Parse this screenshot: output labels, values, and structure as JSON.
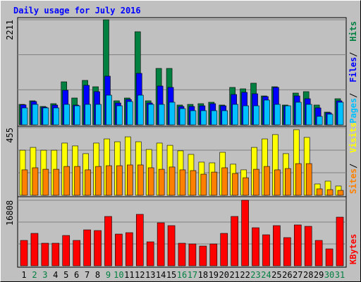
{
  "title": "Daily usage for July 2016",
  "categories": [
    "1",
    "2",
    "3",
    "4",
    "5",
    "6",
    "7",
    "8",
    "9",
    "10",
    "11",
    "12",
    "13",
    "14",
    "15",
    "16",
    "17",
    "18",
    "19",
    "20",
    "21",
    "22",
    "23",
    "24",
    "25",
    "26",
    "27",
    "28",
    "29",
    "30",
    "31"
  ],
  "category_colors": [
    "#000000",
    "#008040",
    "#008040",
    "#000000",
    "#000000",
    "#000000",
    "#000000",
    "#000000",
    "#008040",
    "#008040",
    "#000000",
    "#000000",
    "#000000",
    "#000000",
    "#000000",
    "#008040",
    "#008040",
    "#000000",
    "#000000",
    "#000000",
    "#000000",
    "#000000",
    "#008040",
    "#008040",
    "#000000",
    "#000000",
    "#000000",
    "#000000",
    "#000000",
    "#008040",
    "#008040"
  ],
  "chart_data": [
    {
      "type": "bar",
      "ylim": [
        0,
        2211
      ],
      "yticks": [
        2211
      ],
      "grid": true,
      "series": [
        {
          "name": "Hits",
          "color": "#008040",
          "values": [
            430,
            505,
            386,
            445,
            905,
            564,
            935,
            801,
            2211,
            505,
            564,
            1959,
            505,
            1187,
            1187,
            416,
            430,
            445,
            475,
            416,
            787,
            757,
            876,
            608,
            801,
            416,
            668,
            698,
            416,
            267,
            549
          ]
        },
        {
          "name": "Files",
          "color": "#0000ff",
          "values": [
            420,
            490,
            371,
            415,
            727,
            415,
            831,
            698,
            1024,
            460,
            534,
            1083,
            460,
            816,
            787,
            386,
            386,
            400,
            445,
            400,
            638,
            683,
            653,
            594,
            787,
            400,
            608,
            549,
            356,
            252,
            505
          ]
        },
        {
          "name": "Pages",
          "color": "#00c0ff",
          "values": [
            356,
            430,
            356,
            356,
            430,
            400,
            430,
            430,
            623,
            400,
            490,
            623,
            430,
            430,
            475,
            341,
            297,
            297,
            297,
            297,
            430,
            400,
            400,
            520,
            430,
            400,
            475,
            430,
            178,
            223,
            475
          ]
        }
      ]
    },
    {
      "type": "bar",
      "ylim": [
        0,
        455
      ],
      "yticks": [
        455
      ],
      "grid": true,
      "series": [
        {
          "name": "Visits",
          "color": "#ffff00",
          "values": [
            303,
            322,
            303,
            303,
            351,
            332,
            280,
            351,
            379,
            360,
            393,
            360,
            308,
            351,
            336,
            299,
            275,
            223,
            218,
            289,
            209,
            171,
            322,
            379,
            408,
            280,
            441,
            389,
            76,
            95,
            62
          ]
        },
        {
          "name": "Sites",
          "color": "#ff8000",
          "values": [
            171,
            185,
            175,
            175,
            194,
            194,
            171,
            194,
            199,
            199,
            204,
            204,
            185,
            175,
            190,
            171,
            166,
            142,
            156,
            185,
            147,
            118,
            175,
            194,
            171,
            180,
            213,
            213,
            43,
            38,
            33
          ]
        }
      ]
    },
    {
      "type": "bar",
      "ylim": [
        0,
        16808
      ],
      "yticks": [
        16808
      ],
      "grid": true,
      "series": [
        {
          "name": "KBytes",
          "color": "#ff0000",
          "values": [
            6505,
            8312,
            5783,
            5783,
            7770,
            6505,
            9216,
            9035,
            12649,
            8132,
            8493,
            13191,
            6144,
            11023,
            10300,
            5783,
            5602,
            5060,
            5602,
            8312,
            12649,
            16808,
            9758,
            7951,
            10300,
            7228,
            10481,
            10119,
            6505,
            4337,
            12468
          ]
        }
      ]
    }
  ]
}
